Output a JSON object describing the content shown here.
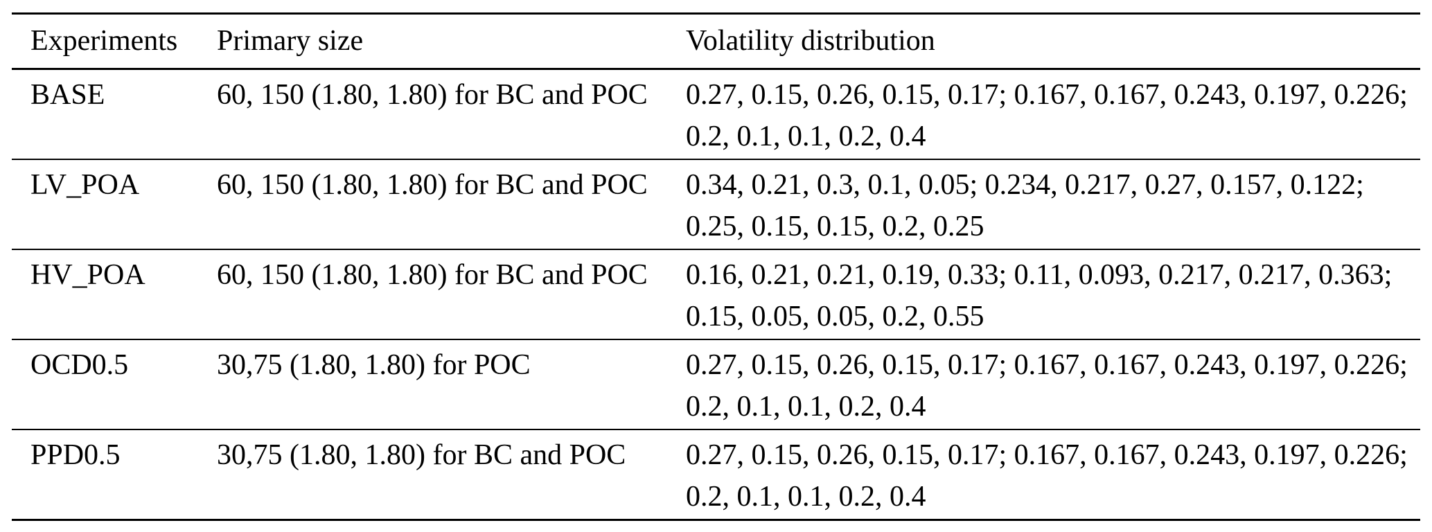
{
  "table": {
    "columns": [
      "Experiments",
      "Primary size",
      "Volatility distribution"
    ],
    "rows": [
      {
        "experiment": "BASE",
        "primary_size": "60, 150 (1.80, 1.80) for BC and POC",
        "volatility_line1": "0.27, 0.15, 0.26, 0.15, 0.17; 0.167, 0.167, 0.243, 0.197, 0.226;",
        "volatility_line2": "0.2, 0.1, 0.1, 0.2, 0.4"
      },
      {
        "experiment": "LV_POA",
        "primary_size": "60, 150 (1.80, 1.80) for BC and POC",
        "volatility_line1": "0.34, 0.21, 0.3, 0.1, 0.05; 0.234, 0.217, 0.27, 0.157, 0.122;",
        "volatility_line2": "0.25, 0.15, 0.15, 0.2, 0.25"
      },
      {
        "experiment": "HV_POA",
        "primary_size": "60, 150 (1.80, 1.80) for BC and POC",
        "volatility_line1": "0.16, 0.21, 0.21, 0.19, 0.33; 0.11, 0.093, 0.217, 0.217, 0.363;",
        "volatility_line2": "0.15, 0.05, 0.05, 0.2, 0.55"
      },
      {
        "experiment": "OCD0.5",
        "primary_size": "30,75 (1.80, 1.80) for POC",
        "volatility_line1": "0.27, 0.15, 0.26, 0.15, 0.17; 0.167, 0.167, 0.243, 0.197, 0.226;",
        "volatility_line2": "0.2, 0.1, 0.1, 0.2, 0.4"
      },
      {
        "experiment": "PPD0.5",
        "primary_size": "30,75 (1.80, 1.80) for BC and POC",
        "volatility_line1": "0.27, 0.15, 0.26, 0.15, 0.17; 0.167, 0.167, 0.243, 0.197, 0.226;",
        "volatility_line2": "0.2, 0.1, 0.1, 0.2, 0.4"
      }
    ]
  }
}
